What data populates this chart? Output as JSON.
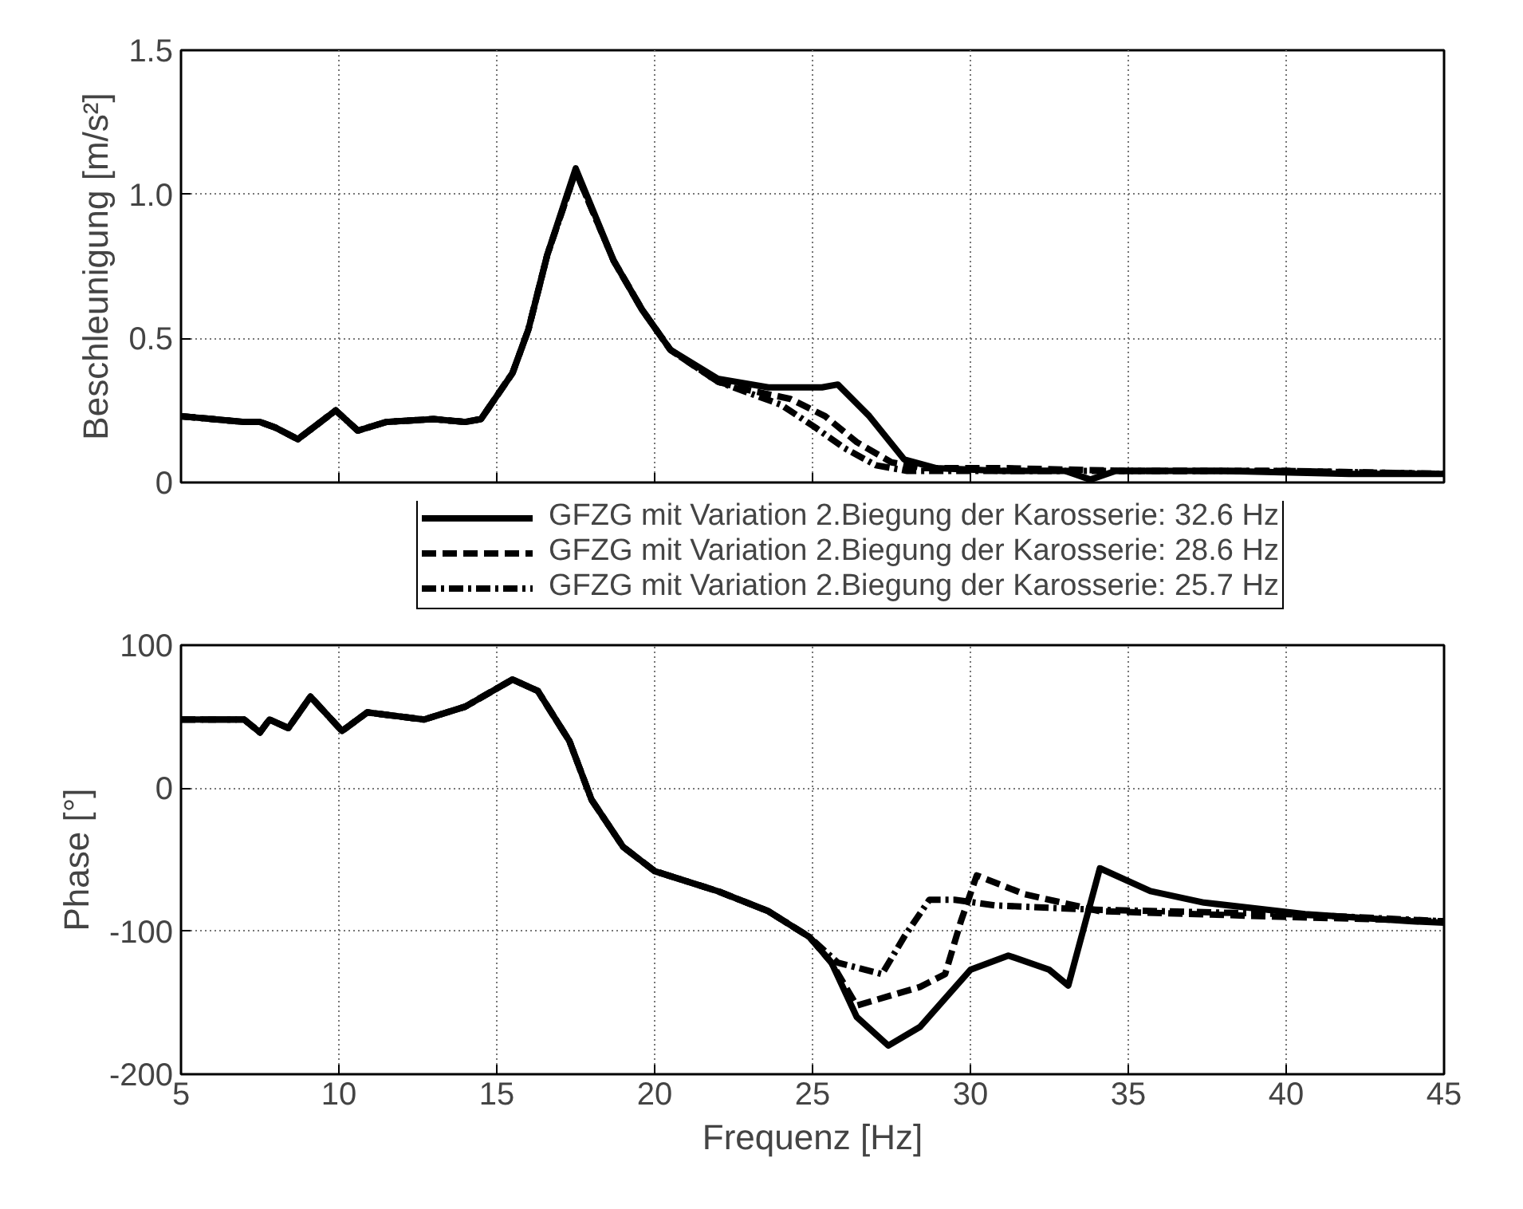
{
  "chart_data": [
    {
      "type": "line",
      "ylabel": "Beschleunigung [m/s²]",
      "xlim": [
        5,
        45
      ],
      "xticks": [
        5,
        10,
        15,
        20,
        25,
        30,
        35,
        40,
        45
      ],
      "ylim": [
        0,
        1.5
      ],
      "yticks": [
        0,
        0.5,
        {
          "value": 1,
          "label": "1.0"
        },
        1.5
      ],
      "grid": true,
      "legend": "bottom",
      "tick_labels": "y",
      "series": [
        {
          "name": "GFZG mit Variation 2.Biegung der Karosserie: 32.6 Hz",
          "color": "#000000",
          "line_style": "solid",
          "x": [
            5,
            6,
            7,
            7.5,
            8,
            8.7,
            9.9,
            10.6,
            11.5,
            13,
            14,
            14.5,
            15.5,
            16.0,
            16.6,
            17.5,
            18.7,
            19.6,
            20.5,
            22.0,
            23.6,
            25.3,
            25.8,
            26.8,
            27.9,
            28.9,
            31,
            33,
            33.8,
            34.6,
            38,
            42,
            45
          ],
          "values": [
            0.23,
            0.22,
            0.21,
            0.21,
            0.19,
            0.15,
            0.25,
            0.18,
            0.21,
            0.22,
            0.21,
            0.22,
            0.38,
            0.53,
            0.79,
            1.09,
            0.77,
            0.6,
            0.46,
            0.36,
            0.33,
            0.33,
            0.34,
            0.23,
            0.08,
            0.05,
            0.04,
            0.04,
            0.01,
            0.04,
            0.04,
            0.03,
            0.03
          ]
        },
        {
          "name": "GFZG mit Variation 2.Biegung der Karosserie: 28.6 Hz",
          "color": "#000000",
          "line_style": "dashed",
          "x": [
            5,
            6,
            7,
            7.5,
            8,
            8.7,
            9.9,
            10.6,
            11.5,
            13,
            14,
            14.5,
            15.5,
            16.0,
            16.6,
            17.5,
            18.7,
            19.6,
            20.5,
            22.0,
            23.0,
            24.3,
            25.4,
            26.4,
            27.5,
            28.5,
            31,
            35,
            40,
            45
          ],
          "values": [
            0.23,
            0.22,
            0.21,
            0.21,
            0.19,
            0.15,
            0.25,
            0.18,
            0.21,
            0.22,
            0.21,
            0.22,
            0.38,
            0.53,
            0.79,
            1.08,
            0.77,
            0.6,
            0.46,
            0.35,
            0.32,
            0.29,
            0.23,
            0.14,
            0.07,
            0.05,
            0.05,
            0.04,
            0.04,
            0.03
          ]
        },
        {
          "name": "GFZG mit Variation 2.Biegung der Karosserie: 25.7 Hz",
          "color": "#000000",
          "line_style": "dashdot",
          "x": [
            5,
            6,
            7,
            7.5,
            8,
            8.7,
            9.9,
            10.6,
            11.5,
            13,
            14,
            14.5,
            15.5,
            16.0,
            16.6,
            17.5,
            18.7,
            19.6,
            20.5,
            22.0,
            23.0,
            24.0,
            25.1,
            26.0,
            27.0,
            28.0,
            31,
            35,
            40,
            45
          ],
          "values": [
            0.23,
            0.22,
            0.21,
            0.21,
            0.19,
            0.15,
            0.25,
            0.18,
            0.21,
            0.22,
            0.21,
            0.22,
            0.38,
            0.53,
            0.79,
            1.08,
            0.77,
            0.6,
            0.46,
            0.35,
            0.31,
            0.27,
            0.19,
            0.12,
            0.06,
            0.04,
            0.04,
            0.04,
            0.04,
            0.03
          ]
        }
      ]
    },
    {
      "type": "line",
      "ylabel": "Phase [°]",
      "xlabel": "Frequenz [Hz]",
      "xlim": [
        5,
        45
      ],
      "xticks": [
        5,
        10,
        15,
        20,
        25,
        30,
        35,
        40,
        45
      ],
      "ylim": [
        -200,
        100
      ],
      "yticks": [
        -200,
        -100,
        0,
        100
      ],
      "grid": true,
      "series": [
        {
          "color": "#000000",
          "line_style": "solid",
          "x": [
            5,
            7.0,
            7.5,
            7.8,
            8.4,
            9.1,
            10.1,
            10.9,
            12.7,
            14.0,
            15.5,
            16.3,
            17.3,
            18.0,
            19.0,
            20.0,
            22.0,
            23.6,
            24.9,
            25.6,
            26.4,
            27.4,
            28.4,
            30.0,
            31.2,
            32.5,
            33.1,
            34.1,
            35.7,
            37.4,
            40.6,
            43.9,
            45
          ],
          "values": [
            48,
            48,
            39,
            48,
            42,
            64,
            40,
            53,
            48,
            57,
            76,
            68,
            33,
            -8,
            -41,
            -58,
            -72,
            -86,
            -104,
            -122,
            -160,
            -180,
            -167,
            -127,
            -117,
            -127,
            -138,
            -56,
            -72,
            -80,
            -88,
            -93,
            -94
          ]
        },
        {
          "color": "#000000",
          "line_style": "dashed",
          "x": [
            5,
            7.0,
            7.5,
            7.8,
            8.4,
            9.1,
            10.1,
            10.9,
            12.7,
            14.0,
            15.5,
            16.3,
            17.3,
            18.0,
            19.0,
            20.0,
            22.0,
            23.6,
            24.9,
            25.6,
            26.4,
            28.4,
            29.2,
            29.7,
            30.2,
            31.7,
            34.1,
            40,
            45
          ],
          "values": [
            48,
            48,
            39,
            48,
            42,
            64,
            40,
            53,
            48,
            57,
            76,
            68,
            33,
            -8,
            -41,
            -58,
            -72,
            -86,
            -104,
            -122,
            -152,
            -139,
            -130,
            -93,
            -61,
            -74,
            -86,
            -90,
            -93
          ]
        },
        {
          "color": "#000000",
          "line_style": "dashdot",
          "x": [
            5,
            7.0,
            7.5,
            7.8,
            8.4,
            9.1,
            10.1,
            10.9,
            12.7,
            14.0,
            15.5,
            16.3,
            17.3,
            18.0,
            19.0,
            20.0,
            22.0,
            23.6,
            24.9,
            25.8,
            27.2,
            27.9,
            28.7,
            29.5,
            30.8,
            34,
            40,
            45
          ],
          "values": [
            48,
            48,
            39,
            48,
            42,
            64,
            40,
            53,
            48,
            57,
            76,
            68,
            33,
            -8,
            -41,
            -58,
            -72,
            -86,
            -104,
            -122,
            -130,
            -104,
            -78,
            -78,
            -82,
            -85,
            -88,
            -93
          ]
        }
      ]
    }
  ]
}
